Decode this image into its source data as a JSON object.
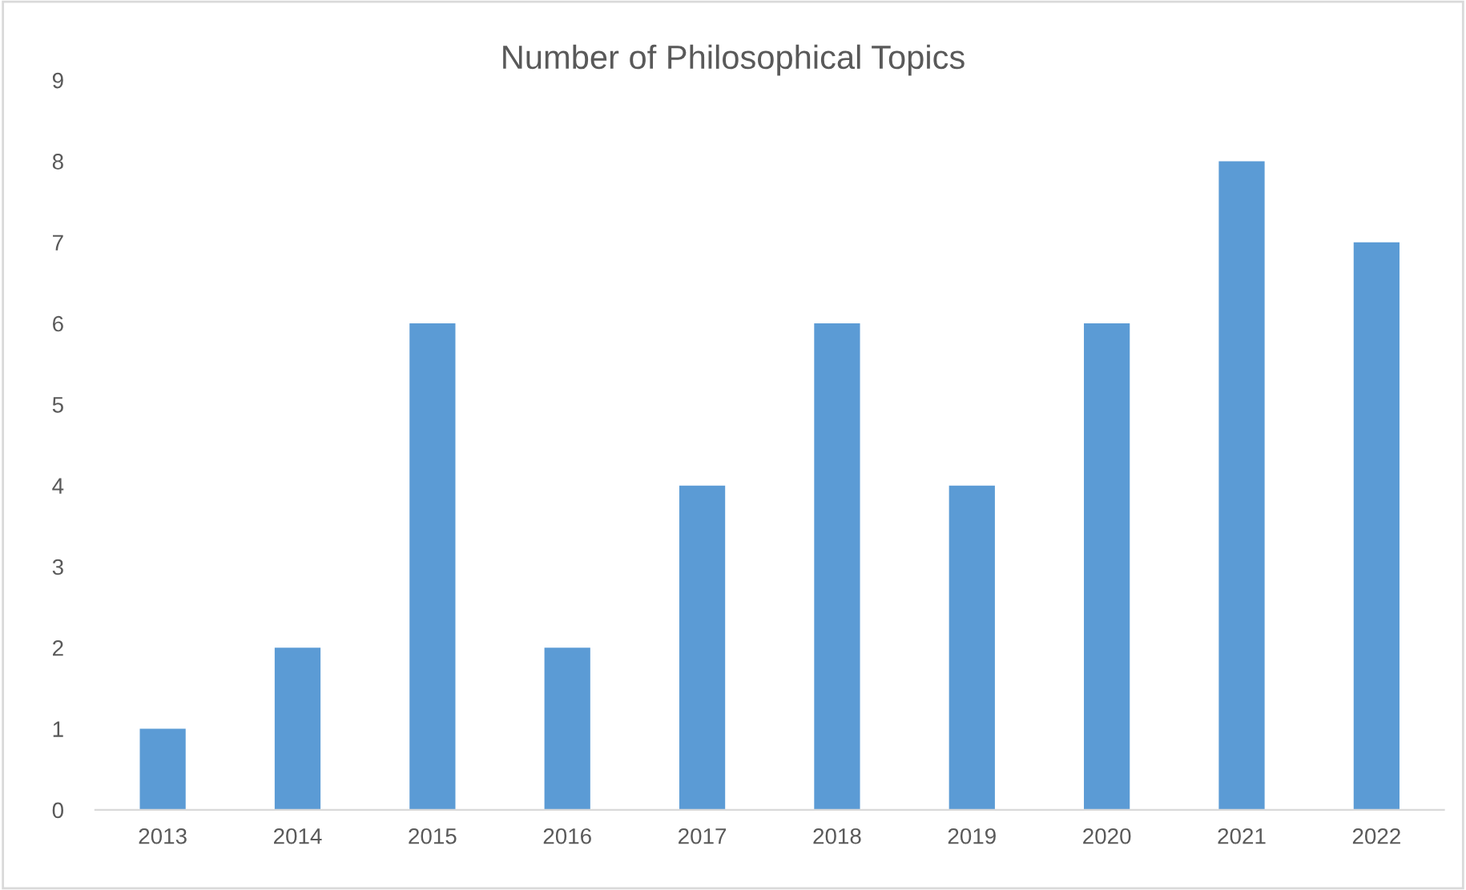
{
  "chart_data": {
    "type": "bar",
    "title": "Number of Philosophical Topics",
    "categories": [
      "2013",
      "2014",
      "2015",
      "2016",
      "2017",
      "2018",
      "2019",
      "2020",
      "2021",
      "2022"
    ],
    "values": [
      1,
      2,
      6,
      2,
      4,
      6,
      4,
      6,
      8,
      7
    ],
    "color": "#5b9bd5",
    "ylim": [
      0,
      9
    ],
    "yticks": [
      0,
      1,
      2,
      3,
      4,
      5,
      6,
      7,
      8,
      9
    ],
    "grid": false
  }
}
